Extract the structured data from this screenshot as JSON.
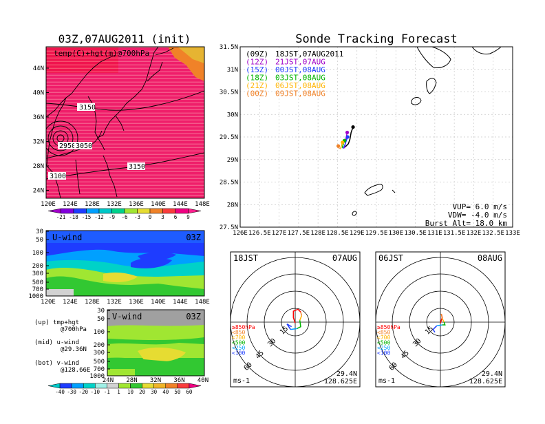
{
  "left": {
    "title": "03Z,07AUG2011 (init)",
    "map_label": "temp(C)+hgt(m)@700hPa",
    "map_lat_ticks": [
      "44N",
      "40N",
      "36N",
      "32N",
      "28N",
      "24N"
    ],
    "map_lon_ticks": [
      "120E",
      "124E",
      "128E",
      "132E",
      "136E",
      "140E",
      "144E",
      "148E"
    ],
    "contour_labels": [
      "3150",
      "2950",
      "3050",
      "3150",
      "3100"
    ],
    "temp_colorbar": {
      "labels": [
        "-21",
        "-18",
        "-15",
        "-12",
        "-9",
        "-6",
        "-3",
        "0",
        "3",
        "6",
        "9"
      ],
      "colors": [
        "#a000c8",
        "#8200dc",
        "#1e3cff",
        "#00a0ff",
        "#00c8c8",
        "#00d28c",
        "#a0e632",
        "#e6dc32",
        "#f08228",
        "#fa3c3c",
        "#f00082",
        "#ff1e8c"
      ]
    },
    "uwind": {
      "label": "U-wind",
      "time": "03Z",
      "p_ticks": [
        "30",
        "50",
        "100",
        "200",
        "300",
        "500",
        "700",
        "1000"
      ],
      "lon_ticks": [
        "120E",
        "124E",
        "128E",
        "132E",
        "136E",
        "140E",
        "144E",
        "148E"
      ]
    },
    "vwind": {
      "label": "V-wind",
      "time": "03Z",
      "p_ticks": [
        "30",
        "50",
        "100",
        "200",
        "300",
        "500",
        "700",
        "1000"
      ],
      "lat_ticks": [
        "24N",
        "28N",
        "32N",
        "36N",
        "40N"
      ]
    },
    "wind_colorbar": {
      "labels": [
        "-40",
        "-30",
        "-20",
        "-10",
        "-1",
        "1",
        "10",
        "20",
        "30",
        "40",
        "50",
        "60"
      ],
      "colors": [
        "#00c8c8",
        "#1e3cff",
        "#00a0ff",
        "#00d2c8",
        "#a0f0e6",
        "#d2d2d2",
        "#a0e632",
        "#32c832",
        "#e6dc32",
        "#f0b428",
        "#f08228",
        "#fa3c3c",
        "#f00082"
      ]
    },
    "notes": [
      {
        "l1": "(up) tmp+hgt",
        "l2": "@700hPa"
      },
      {
        "l1": "(mid) u-wind",
        "l2": "@29.36N"
      },
      {
        "l1": "(bot) v-wind",
        "l2": "@128.66E"
      }
    ]
  },
  "main": {
    "title": "Sonde Tracking Forecast",
    "legend": [
      {
        "z": "(09Z)",
        "t": "18JST,07AUG2011",
        "color": "#000000"
      },
      {
        "z": "(12Z)",
        "t": "21JST,07AUG",
        "color": "#a000c8"
      },
      {
        "z": "(15Z)",
        "t": "00JST,08AUG",
        "color": "#1e3cff"
      },
      {
        "z": "(18Z)",
        "t": "03JST,08AUG",
        "color": "#00b400"
      },
      {
        "z": "(21Z)",
        "t": "06JST,08AUG",
        "color": "#ffb400"
      },
      {
        "z": "(00Z)",
        "t": "09JST,08AUG",
        "color": "#f08228"
      }
    ],
    "params": [
      {
        "k": "VUP=",
        "v": "6.0 m/s"
      },
      {
        "k": "VDW=",
        "v": "-4.0 m/s"
      },
      {
        "k": "Burst Alt=",
        "v": "18.0 km"
      }
    ]
  },
  "chart_data": [
    {
      "type": "scatter",
      "title": "Sonde Tracking Forecast",
      "xlim": [
        126,
        133
      ],
      "ylim": [
        27.5,
        31.5
      ],
      "x_ticks": [
        "126E",
        "126.5E",
        "127E",
        "127.5E",
        "128E",
        "128.5E",
        "129E",
        "129.5E",
        "130E",
        "130.5E",
        "131E",
        "131.5E",
        "132E",
        "132.5E",
        "133E"
      ],
      "y_ticks": [
        "31.5N",
        "31N",
        "30.5N",
        "30N",
        "29.5N",
        "29N",
        "28.5N",
        "28N",
        "27.5N"
      ],
      "grid": true,
      "series": [
        {
          "name": "(09Z) 18JST,07AUG2011",
          "color": "#000000",
          "points": [
            [
              128.9,
              29.72
            ],
            [
              128.85,
              29.6
            ],
            [
              128.82,
              29.45
            ],
            [
              128.78,
              29.35
            ],
            [
              128.7,
              29.28
            ]
          ]
        },
        {
          "name": "(12Z) 21JST,07AUG",
          "color": "#a000c8",
          "points": [
            [
              128.75,
              29.6
            ],
            [
              128.72,
              29.48
            ],
            [
              128.7,
              29.35
            ],
            [
              128.68,
              29.25
            ]
          ]
        },
        {
          "name": "(15Z) 00JST,08AUG",
          "color": "#1e3cff",
          "points": [
            [
              128.76,
              29.5
            ],
            [
              128.72,
              29.4
            ],
            [
              128.68,
              29.3
            ],
            [
              128.64,
              29.24
            ]
          ]
        },
        {
          "name": "(18Z) 03JST,08AUG",
          "color": "#00b400",
          "points": [
            [
              128.68,
              29.42
            ],
            [
              128.65,
              29.34
            ],
            [
              128.62,
              29.26
            ]
          ]
        },
        {
          "name": "(21Z) 06JST,08AUG",
          "color": "#ffb400",
          "points": [
            [
              128.63,
              29.38
            ],
            [
              128.6,
              29.3
            ],
            [
              128.57,
              29.23
            ]
          ]
        },
        {
          "name": "(00Z) 09JST,08AUG",
          "color": "#f08228",
          "points": [
            [
              128.52,
              29.3
            ],
            [
              128.55,
              29.24
            ]
          ]
        }
      ]
    },
    {
      "type": "line",
      "title": "18JST 07AUG",
      "units": "ms-1",
      "rings": [
        "15",
        "30",
        "45",
        "60"
      ],
      "pressure_levels": [
        "≥850hPa",
        "<850",
        "<700",
        "<500",
        "<250",
        "<100"
      ],
      "level_colors": [
        "#ff0000",
        "#f08228",
        "#ffb400",
        "#00b400",
        "#00a0ff",
        "#1e3cff"
      ],
      "lat_label": "29.4N",
      "lon_label": "128.625E",
      "series": [
        {
          "level": "≥850hPa",
          "color": "#ff0000",
          "points": [
            [
              0,
              -1
            ],
            [
              -2,
              5
            ],
            [
              -2,
              12
            ],
            [
              3,
              14
            ],
            [
              6,
              11
            ]
          ]
        },
        {
          "level": "<850",
          "color": "#f08228",
          "points": [
            [
              6,
              11
            ],
            [
              7,
              7
            ]
          ]
        },
        {
          "level": "<700",
          "color": "#ffb400",
          "points": [
            [
              7,
              7
            ],
            [
              5,
              2
            ]
          ]
        },
        {
          "level": "<500",
          "color": "#00b400",
          "points": [
            [
              5,
              2
            ],
            [
              6,
              -5
            ],
            [
              2,
              -7
            ]
          ]
        },
        {
          "level": "<250",
          "color": "#00a0ff",
          "points": [
            [
              2,
              -7
            ],
            [
              -5,
              -8
            ]
          ]
        },
        {
          "level": "<100",
          "color": "#1e3cff",
          "points": [
            [
              -5,
              -8
            ],
            [
              -9,
              -2
            ],
            [
              -4,
              -5
            ]
          ]
        }
      ]
    },
    {
      "type": "line",
      "title": "06JST 08AUG",
      "units": "ms-1",
      "rings": [
        "15",
        "30",
        "45",
        "60"
      ],
      "pressure_levels": [
        "≥850hPa",
        "<850",
        "<700",
        "<500",
        "<250",
        "<100"
      ],
      "level_colors": [
        "#ff0000",
        "#f08228",
        "#ffb400",
        "#00b400",
        "#00a0ff",
        "#1e3cff"
      ],
      "lat_label": "29.4N",
      "lon_label": "128.625E",
      "series": [
        {
          "level": "≥850hPa",
          "color": "#ff0000",
          "points": [
            [
              0,
              -1
            ],
            [
              2,
              5
            ],
            [
              1,
              9
            ]
          ]
        },
        {
          "level": "<850",
          "color": "#f08228",
          "points": [
            [
              1,
              9
            ],
            [
              2,
              4
            ]
          ]
        },
        {
          "level": "<700",
          "color": "#ffb400",
          "points": [
            [
              2,
              4
            ],
            [
              4,
              0
            ]
          ]
        },
        {
          "level": "<500",
          "color": "#00b400",
          "points": [
            [
              4,
              0
            ],
            [
              5,
              -3
            ],
            [
              2,
              -3
            ]
          ]
        },
        {
          "level": "<250",
          "color": "#00a0ff",
          "points": [
            [
              2,
              -3
            ],
            [
              -4,
              -4
            ]
          ]
        },
        {
          "level": "<100",
          "color": "#1e3cff",
          "points": [
            [
              -4,
              -4
            ],
            [
              -8,
              -8
            ],
            [
              -6,
              -11
            ]
          ]
        }
      ]
    }
  ]
}
